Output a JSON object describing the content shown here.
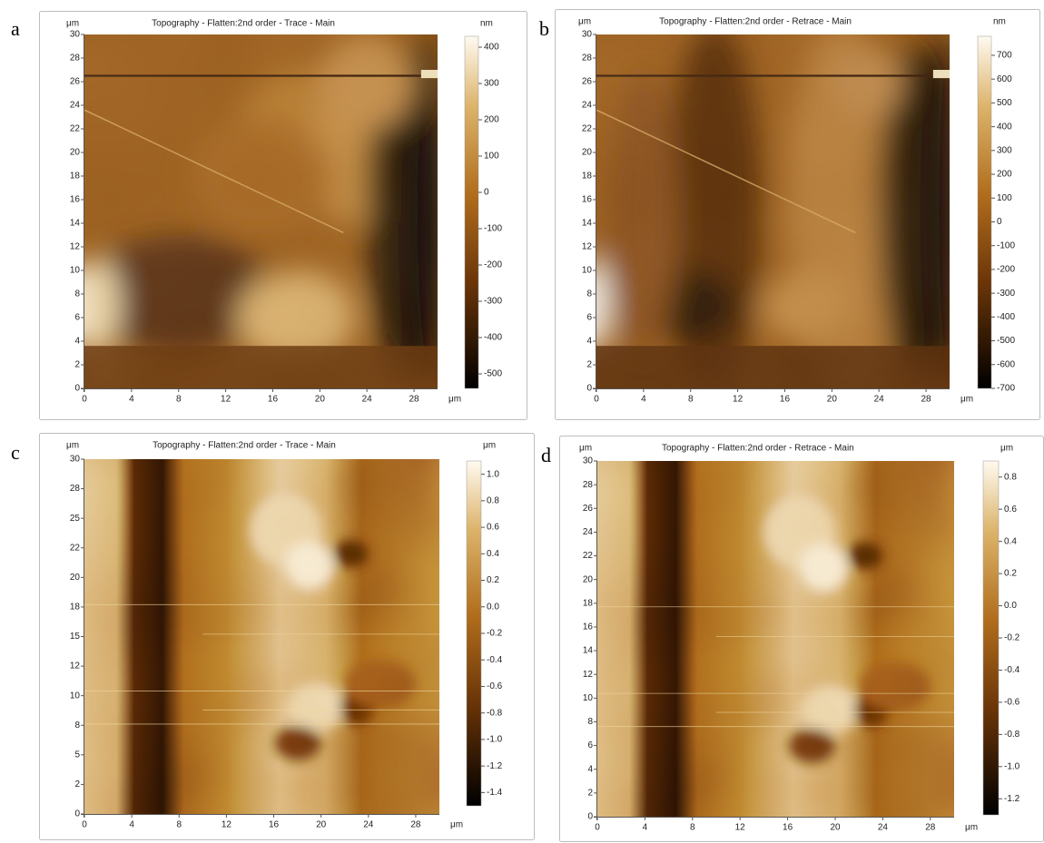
{
  "panels": [
    {
      "label": "a",
      "title": "Topography  -  Flatten:2nd order  -  Trace  -  Main",
      "y_unit": "μm",
      "x_unit": "μm",
      "colorbar_unit": "nm",
      "xlim": [
        0,
        30
      ],
      "ylim": [
        0,
        30
      ],
      "xticks": [
        0,
        4,
        8,
        12,
        16,
        20,
        24,
        28
      ],
      "yticks": [
        0,
        2,
        4,
        6,
        8,
        10,
        12,
        14,
        16,
        18,
        20,
        22,
        24,
        26,
        28,
        30
      ],
      "colorbar_lim": [
        -540,
        430
      ],
      "colorbar_ticks": [
        400,
        300,
        200,
        100,
        0,
        -100,
        -200,
        -300,
        -400,
        -500
      ]
    },
    {
      "label": "b",
      "title": "Topography  -  Flatten:2nd order  -  Retrace  -  Main",
      "y_unit": "μm",
      "x_unit": "μm",
      "colorbar_unit": "nm",
      "xlim": [
        0,
        30
      ],
      "ylim": [
        0,
        30
      ],
      "xticks": [
        0,
        4,
        8,
        12,
        16,
        20,
        24,
        28
      ],
      "yticks": [
        0,
        2,
        4,
        6,
        8,
        10,
        12,
        14,
        16,
        18,
        20,
        22,
        24,
        26,
        28,
        30
      ],
      "colorbar_lim": [
        -700,
        780
      ],
      "colorbar_ticks": [
        700,
        600,
        500,
        400,
        300,
        200,
        100,
        0,
        -100,
        -200,
        -300,
        -400,
        -500,
        -600,
        -700
      ]
    },
    {
      "label": "c",
      "title": "Topography  -  Flatten:2nd order  -  Trace  -  Main",
      "y_unit": "μm",
      "x_unit": "μm",
      "colorbar_unit": "μm",
      "xlim": [
        0,
        30
      ],
      "ylim": [
        0,
        30
      ],
      "xticks": [
        0,
        4,
        8,
        12,
        16,
        20,
        24,
        28
      ],
      "yticks": [
        0,
        {
          "value": 2.5,
          "label": "2"
        },
        5,
        {
          "value": 7.5,
          "label": "8"
        },
        10,
        {
          "value": 12.5,
          "label": "12"
        },
        15,
        {
          "value": 17.5,
          "label": "18"
        },
        20,
        {
          "value": 22.5,
          "label": "22"
        },
        25,
        {
          "value": 27.5,
          "label": "28"
        },
        30
      ],
      "colorbar_lim": [
        -1.5,
        1.1
      ],
      "colorbar_ticks": [
        {
          "value": 1.0,
          "label": "1.0"
        },
        0.8,
        0.6,
        0.4,
        0.2,
        {
          "value": 0.0,
          "label": "0.0"
        },
        -0.2,
        -0.4,
        -0.6,
        -0.8,
        {
          "value": -1.0,
          "label": "-1.0"
        },
        -1.2,
        -1.4
      ]
    },
    {
      "label": "d",
      "title": "Topography  -  Flatten:2nd order  -  Retrace  -  Main",
      "y_unit": "μm",
      "x_unit": "μm",
      "colorbar_unit": "μm",
      "xlim": [
        0,
        30
      ],
      "ylim": [
        0,
        30
      ],
      "xticks": [
        0,
        4,
        8,
        12,
        16,
        20,
        24,
        28
      ],
      "yticks": [
        0,
        2,
        4,
        6,
        8,
        10,
        12,
        14,
        16,
        18,
        20,
        22,
        24,
        26,
        28,
        30
      ],
      "colorbar_lim": [
        -1.3,
        0.9
      ],
      "colorbar_ticks": [
        0.8,
        0.6,
        0.4,
        0.2,
        {
          "value": 0.0,
          "label": "0.0"
        },
        -0.2,
        -0.4,
        -0.6,
        -0.8,
        {
          "value": -1.0,
          "label": "-1.0"
        },
        -1.2
      ]
    }
  ]
}
